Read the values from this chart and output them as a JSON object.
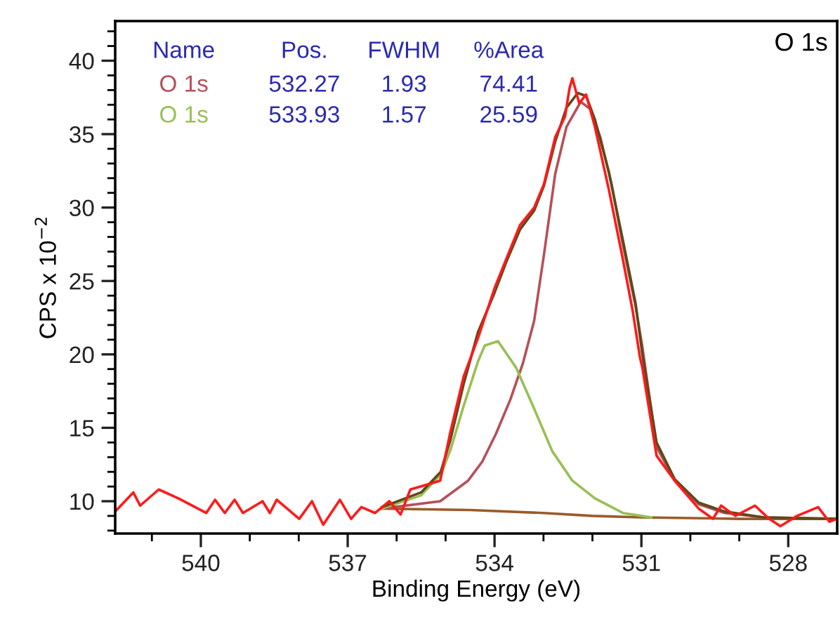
{
  "chart_data": {
    "type": "line",
    "title": "O 1s",
    "xlabel": "Binding Energy (eV)",
    "ylabel": "CPS x 10$^{−2}$",
    "xlim": [
      541.75,
      527.0
    ],
    "ylim": [
      7.8,
      42.7
    ],
    "xticks": [
      {
        "value": 541,
        "label": null
      },
      540,
      {
        "value": 539,
        "label": null
      },
      {
        "value": 538,
        "label": null
      },
      537,
      {
        "value": 536,
        "label": null
      },
      {
        "value": 535,
        "label": null
      },
      534,
      {
        "value": 533,
        "label": null
      },
      {
        "value": 532,
        "label": null
      },
      531,
      {
        "value": 530,
        "label": null
      },
      {
        "value": 529,
        "label": null
      },
      528
    ],
    "yticks": [
      {
        "value": 8,
        "label": null
      },
      {
        "value": 9,
        "label": null
      },
      10,
      {
        "value": 11,
        "label": null
      },
      {
        "value": 12,
        "label": null
      },
      {
        "value": 13,
        "label": null
      },
      {
        "value": 14,
        "label": null
      },
      15,
      {
        "value": 16,
        "label": null
      },
      {
        "value": 17,
        "label": null
      },
      {
        "value": 18,
        "label": null
      },
      {
        "value": 19,
        "label": null
      },
      20,
      {
        "value": 21,
        "label": null
      },
      {
        "value": 22,
        "label": null
      },
      {
        "value": 23,
        "label": null
      },
      {
        "value": 24,
        "label": null
      },
      25,
      {
        "value": 26,
        "label": null
      },
      {
        "value": 27,
        "label": null
      },
      {
        "value": 28,
        "label": null
      },
      {
        "value": 29,
        "label": null
      },
      30,
      {
        "value": 31,
        "label": null
      },
      {
        "value": 32,
        "label": null
      },
      {
        "value": 33,
        "label": null
      },
      {
        "value": 34,
        "label": null
      },
      35,
      {
        "value": 36,
        "label": null
      },
      {
        "value": 37,
        "label": null
      },
      {
        "value": 38,
        "label": null
      },
      {
        "value": 39,
        "label": null
      },
      40,
      {
        "value": 41,
        "label": null
      },
      {
        "value": 42,
        "label": null
      }
    ],
    "annotations": [
      "Name",
      "Pos.",
      "FWHM",
      "%Area",
      "532.27",
      "1.93",
      "74.41",
      "533.93",
      "1.57",
      "25.59"
    ],
    "series": [
      {
        "color": "#9c5a28",
        "x": [
          536.3,
          534.5,
          533.0,
          532.0,
          531.0,
          529.0,
          527.0
        ],
        "values": [
          9.5,
          9.4,
          9.2,
          9.0,
          8.9,
          8.8,
          8.8
        ]
      },
      {
        "name": "O 1s",
        "color": "#b5505a",
        "x": [
          536.3,
          536.06,
          535.11,
          534.54,
          534.25,
          533.97,
          533.68,
          533.42,
          533.19,
          532.99,
          532.76,
          532.53,
          532.24,
          532.04,
          531.84,
          531.61,
          531.38,
          531.12,
          530.98,
          530.69,
          530.32,
          529.83,
          529.3,
          528.5,
          527.0
        ],
        "values": [
          9.5,
          9.6,
          10.0,
          11.4,
          12.7,
          14.6,
          16.9,
          19.4,
          22.3,
          26.8,
          32.3,
          35.5,
          37.2,
          36.7,
          34.8,
          31.6,
          27.5,
          23.3,
          20.5,
          13.7,
          11.4,
          9.8,
          9.2,
          8.9,
          8.8
        ]
      },
      {
        "name": "O 1s",
        "color": "#99bf55",
        "x": [
          536.3,
          535.5,
          535.1,
          534.9,
          534.63,
          534.34,
          534.2,
          533.93,
          533.56,
          533.19,
          532.82,
          532.41,
          531.95,
          531.38,
          531.0,
          530.8
        ],
        "values": [
          9.5,
          10.4,
          11.8,
          13.5,
          16.5,
          19.5,
          20.6,
          20.9,
          19.1,
          16.3,
          13.4,
          11.4,
          10.2,
          9.2,
          9.0,
          8.9
        ]
      },
      {
        "color": "#5a4a1a",
        "x": [
          536.3,
          535.5,
          535.1,
          534.9,
          534.63,
          534.34,
          534.0,
          533.76,
          533.48,
          533.19,
          532.99,
          532.76,
          532.53,
          532.3,
          532.13,
          531.95,
          531.67,
          531.38,
          531.12,
          530.98,
          530.69,
          530.32,
          529.83,
          529.3,
          528.5,
          527.0
        ],
        "values": [
          9.6,
          10.6,
          12.0,
          14.2,
          18.0,
          21.5,
          24.2,
          26.3,
          28.5,
          29.8,
          31.5,
          34.5,
          36.8,
          37.8,
          37.6,
          36.0,
          32.5,
          27.8,
          23.5,
          20.0,
          14.0,
          11.5,
          9.9,
          9.3,
          8.9,
          8.8
        ]
      },
      {
        "color": "#ff1a1a",
        "x": [
          541.75,
          541.38,
          541.24,
          540.86,
          540.46,
          539.89,
          539.71,
          539.51,
          539.31,
          539.14,
          538.74,
          538.59,
          538.45,
          537.99,
          537.73,
          537.5,
          537.16,
          536.93,
          536.72,
          536.44,
          536.15,
          535.92,
          535.72,
          535.11,
          534.91,
          534.63,
          534.34,
          533.99,
          533.76,
          533.48,
          533.19,
          532.99,
          532.76,
          532.56,
          532.47,
          532.41,
          532.27,
          532.13,
          531.95,
          531.67,
          531.38,
          531.18,
          531.03,
          530.98,
          530.69,
          530.32,
          529.83,
          529.54,
          529.37,
          529.08,
          528.68,
          528.39,
          528.16,
          527.82,
          527.39,
          527.16,
          527.01
        ],
        "values": [
          9.3,
          10.6,
          9.7,
          10.8,
          10.2,
          9.2,
          10.1,
          9.2,
          10.1,
          9.2,
          10.0,
          9.2,
          10.1,
          8.8,
          10.0,
          8.4,
          10.1,
          8.8,
          9.6,
          9.2,
          10.0,
          9.1,
          10.8,
          11.4,
          14.6,
          18.5,
          21.1,
          24.6,
          26.5,
          28.8,
          30.0,
          31.6,
          34.8,
          36.2,
          38.1,
          38.8,
          37.1,
          37.7,
          35.5,
          31.3,
          26.5,
          23.0,
          19.8,
          19.1,
          13.1,
          11.4,
          9.5,
          8.8,
          9.7,
          9.0,
          9.7,
          8.8,
          8.3,
          9.0,
          9.6,
          8.6,
          8.8
        ]
      }
    ]
  }
}
